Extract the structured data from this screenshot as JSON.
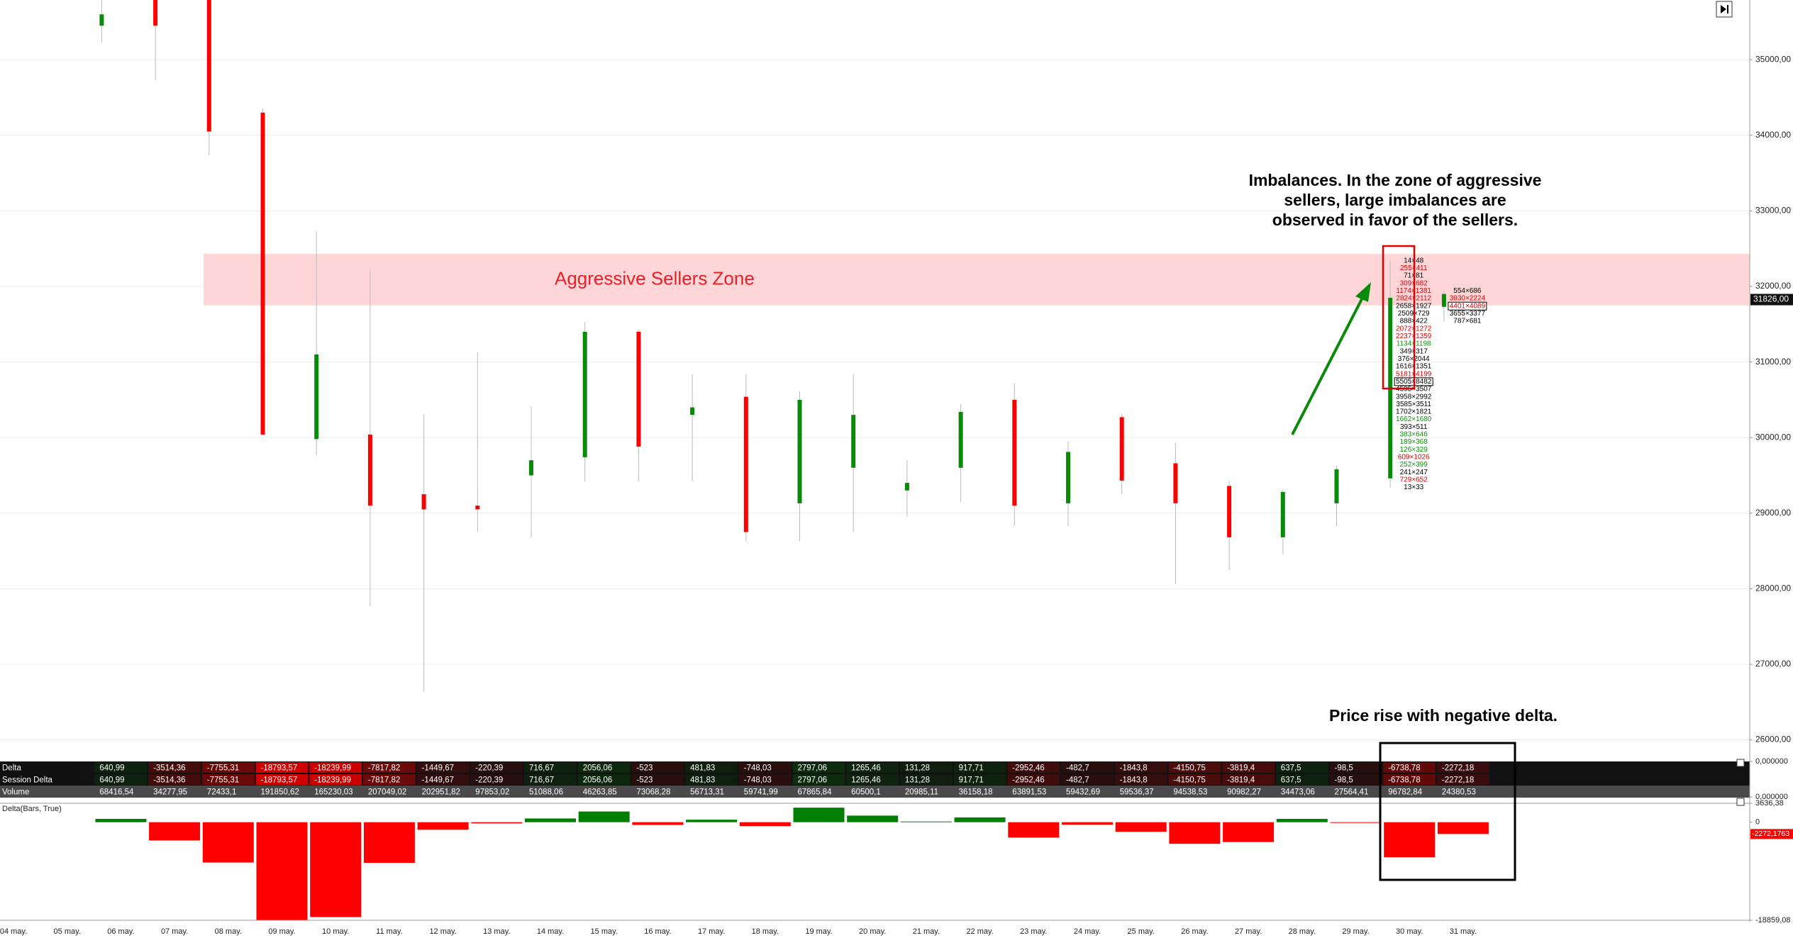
{
  "chart_data": {
    "type": "footprint",
    "categories": [
      "04 may.",
      "05 may.",
      "06 may.",
      "07 may.",
      "08 may.",
      "09 may.",
      "10 may.",
      "11 may.",
      "12 may.",
      "13 may.",
      "14 may.",
      "15 may.",
      "16 may.",
      "17 may.",
      "18 may.",
      "19 may.",
      "20 may.",
      "21 may.",
      "22 may.",
      "23 may.",
      "24 may.",
      "25 may.",
      "26 may.",
      "27 may.",
      "28 may.",
      "29 may.",
      "30 may.",
      "31 may."
    ],
    "open": [
      null,
      null,
      35450,
      35790,
      35790,
      34300,
      29980,
      30040,
      29250,
      29100,
      29500,
      29740,
      31400,
      30300,
      30540,
      29130,
      29600,
      29300,
      29600,
      30500,
      29130,
      30270,
      29660,
      29360,
      28680,
      29130,
      29460,
      31730
    ],
    "high": [
      null,
      null,
      35790,
      35790,
      35790,
      34350,
      32730,
      32220,
      30310,
      31130,
      30410,
      31530,
      31430,
      30840,
      30840,
      30610,
      30840,
      29700,
      30440,
      30720,
      29950,
      30310,
      29930,
      29430,
      29310,
      29630,
      32340,
      31940
    ],
    "low": [
      null,
      null,
      35230,
      34730,
      33740,
      30040,
      29770,
      27770,
      26630,
      28750,
      28680,
      29420,
      29420,
      29420,
      28630,
      28630,
      28750,
      28950,
      29150,
      28830,
      28830,
      29250,
      28060,
      28250,
      28450,
      28830,
      29340,
      31540
    ],
    "close": [
      null,
      null,
      35600,
      35450,
      34050,
      30040,
      31100,
      29100,
      29050,
      29050,
      29700,
      31400,
      29880,
      30400,
      28750,
      30500,
      30300,
      29400,
      30340,
      29100,
      29810,
      29430,
      29130,
      28680,
      29280,
      29580,
      31850,
      31900
    ],
    "up_color": "#0a8a0a",
    "down_color": "#ff0000",
    "ylim": [
      25780,
      35790
    ],
    "yticks": [
      {
        "value": 26000,
        "label": "26000,00"
      },
      {
        "value": 27000,
        "label": "27000,00"
      },
      {
        "value": 28000,
        "label": "28000,00"
      },
      {
        "value": 29000,
        "label": "29000,00"
      },
      {
        "value": 30000,
        "label": "30000,00"
      },
      {
        "value": 31000,
        "label": "31000,00"
      },
      {
        "value": 32000,
        "label": "32000,00"
      },
      {
        "value": 33000,
        "label": "33000,00"
      },
      {
        "value": 34000,
        "label": "34000,00"
      },
      {
        "value": 35000,
        "label": "35000,00"
      }
    ],
    "grid": true,
    "last_price": {
      "value": 31826,
      "label": "31826,00"
    },
    "zone": {
      "label": "Aggressive Sellers Zone",
      "range": [
        31750,
        32430
      ],
      "color": "#ffd6d8"
    },
    "annotations": [
      {
        "lines": [
          "Imbalances. In the zone of aggressive",
          "sellers, large imbalances are",
          "observed in favor of the sellers."
        ]
      },
      {
        "lines": [
          "Price rise with negative delta."
        ]
      }
    ],
    "footprint": [
      null,
      null,
      null,
      null,
      null,
      null,
      null,
      null,
      null,
      null,
      null,
      null,
      null,
      null,
      null,
      null,
      null,
      null,
      null,
      null,
      null,
      null,
      null,
      null,
      null,
      null,
      {
        "cells": [
          {
            "price": 32340,
            "label": "14×48",
            "color": "#000000"
          },
          {
            "price": 32240,
            "label": "255×411",
            "color": "#e00000"
          },
          {
            "price": 32140,
            "label": "71×81",
            "color": "#000000"
          },
          {
            "price": 32040,
            "label": "309×682",
            "color": "#e00000"
          },
          {
            "price": 31940,
            "label": "1174×1381",
            "color": "#e00000"
          },
          {
            "price": 31840,
            "label": "2824×2112",
            "color": "#e00000"
          },
          {
            "price": 31740,
            "label": "2658×1927",
            "color": "#000000"
          },
          {
            "price": 31640,
            "label": "2509×729",
            "color": "#000000"
          },
          {
            "price": 31540,
            "label": "888×422",
            "color": "#000000"
          },
          {
            "price": 31440,
            "label": "2072×1272",
            "color": "#e00000"
          },
          {
            "price": 31340,
            "label": "2237×1359",
            "color": "#e00000"
          },
          {
            "price": 31240,
            "label": "1134×1198",
            "color": "#009900"
          },
          {
            "price": 31140,
            "label": "349×317",
            "color": "#000000"
          },
          {
            "price": 31040,
            "label": "376×2044",
            "color": "#000000"
          },
          {
            "price": 30940,
            "label": "1616×1351",
            "color": "#000000"
          },
          {
            "price": 30840,
            "label": "5181×4199",
            "color": "#e00000"
          },
          {
            "price": 30740,
            "label": "5505×8482",
            "color": "#000000",
            "boxed": true
          },
          {
            "price": 30640,
            "label": "4595×3507",
            "color": "#000000"
          },
          {
            "price": 30540,
            "label": "3958×2992",
            "color": "#000000"
          },
          {
            "price": 30440,
            "label": "3585×3511",
            "color": "#000000"
          },
          {
            "price": 30340,
            "label": "1702×1821",
            "color": "#000000"
          },
          {
            "price": 30240,
            "label": "1662×1680",
            "color": "#009900"
          },
          {
            "price": 30140,
            "label": "393×511",
            "color": "#000000"
          },
          {
            "price": 30040,
            "label": "383×646",
            "color": "#009900"
          },
          {
            "price": 29940,
            "label": "189×368",
            "color": "#009900"
          },
          {
            "price": 29840,
            "label": "126×329",
            "color": "#009900"
          },
          {
            "price": 29740,
            "label": "609×1026",
            "color": "#e00000"
          },
          {
            "price": 29640,
            "label": "252×399",
            "color": "#009900"
          },
          {
            "price": 29540,
            "label": "241×247",
            "color": "#000000"
          },
          {
            "price": 29440,
            "label": "729×652",
            "color": "#e00000"
          },
          {
            "price": 29340,
            "label": "13×33",
            "color": "#000000"
          }
        ]
      },
      {
        "cells": [
          {
            "price": 31940,
            "label": "554×686",
            "color": "#000000"
          },
          {
            "price": 31840,
            "label": "3930×2224",
            "color": "#e00000"
          },
          {
            "price": 31740,
            "label": "4401×4089",
            "color": "#e00000",
            "boxed": true
          },
          {
            "price": 31640,
            "label": "3655×3377",
            "color": "#000000"
          },
          {
            "price": 31540,
            "label": "787×681",
            "color": "#000000"
          }
        ]
      }
    ],
    "table": {
      "yticks": [
        {
          "value": 0,
          "label": "0,000000"
        },
        {
          "value": 0,
          "label": "0,000000"
        }
      ],
      "rows": [
        {
          "name": "Delta",
          "values": [
            null,
            null,
            640.99,
            -3514.36,
            -7755.31,
            -18793.57,
            -18239.99,
            -7817.82,
            -1449.67,
            -220.39,
            716.67,
            2056.06,
            -523,
            481.83,
            -748.03,
            2797.06,
            1265.46,
            131.28,
            917.71,
            -2952.46,
            -482.7,
            -1843.8,
            -4150.75,
            -3819.4,
            637.5,
            -98.5,
            -6738.78,
            -2272.18
          ],
          "value_labels": [
            null,
            null,
            "640,99",
            "-3514,36",
            "-7755,31",
            "-18793,57",
            "-18239,99",
            "-7817,82",
            "-1449,67",
            "-220,39",
            "716,67",
            "2056,06",
            "-523",
            "481,83",
            "-748,03",
            "2797,06",
            "1265,46",
            "131,28",
            "917,71",
            "-2952,46",
            "-482,7",
            "-1843,8",
            "-4150,75",
            "-3819,4",
            "637,5",
            "-98,5",
            "-6738,78",
            "-2272,18"
          ]
        },
        {
          "name": "Session Delta",
          "values": [
            null,
            null,
            640.99,
            -3514.36,
            -7755.31,
            -18793.57,
            -18239.99,
            -7817.82,
            -1449.67,
            -220.39,
            716.67,
            2056.06,
            -523,
            481.83,
            -748.03,
            2797.06,
            1265.46,
            131.28,
            917.71,
            -2952.46,
            -482.7,
            -1843.8,
            -4150.75,
            -3819.4,
            637.5,
            -98.5,
            -6738.78,
            -2272.18
          ],
          "value_labels": [
            null,
            null,
            "640,99",
            "-3514,36",
            "-7755,31",
            "-18793,57",
            "-18239,99",
            "-7817,82",
            "-1449,67",
            "-220,39",
            "716,67",
            "2056,06",
            "-523",
            "481,83",
            "-748,03",
            "2797,06",
            "1265,46",
            "131,28",
            "917,71",
            "-2952,46",
            "-482,7",
            "-1843,8",
            "-4150,75",
            "-3819,4",
            "637,5",
            "-98,5",
            "-6738,78",
            "-2272,18"
          ]
        },
        {
          "name": "Volume",
          "values": [
            null,
            null,
            68416.54,
            34277.95,
            72433.1,
            191850.62,
            165230.03,
            207049.02,
            202951.82,
            97853.02,
            51088.06,
            46263.85,
            73068.28,
            56713.31,
            59741.99,
            67865.84,
            60500.1,
            20985.11,
            36158.18,
            63891.53,
            59432.69,
            59536.37,
            94538.53,
            90982.27,
            34473.06,
            27564.41,
            96782.84,
            24380.53
          ],
          "value_labels": [
            null,
            null,
            "68416,54",
            "34277,95",
            "72433,1",
            "191850,62",
            "165230,03",
            "207049,02",
            "202951,82",
            "97853,02",
            "51088,06",
            "46263,85",
            "73068,28",
            "56713,31",
            "59741,99",
            "67865,84",
            "60500,1",
            "20985,11",
            "36158,18",
            "63891,53",
            "59432,69",
            "59536,37",
            "94538,53",
            "90982,27",
            "34473,06",
            "27564,41",
            "96782,84",
            "24380,53"
          ]
        }
      ]
    },
    "delta_pane": {
      "title": "Delta(Bars, True)",
      "ylim": [
        -18859.08,
        3636.38
      ],
      "yticks": [
        {
          "value": 3636.38,
          "label": "3636,38"
        },
        0,
        {
          "value": -18859.08,
          "label": "-18859,08"
        }
      ],
      "last": {
        "value": -2272.1763,
        "label": "-2272,1763"
      },
      "up_color": "#008000",
      "down_color": "#ff0000"
    }
  }
}
